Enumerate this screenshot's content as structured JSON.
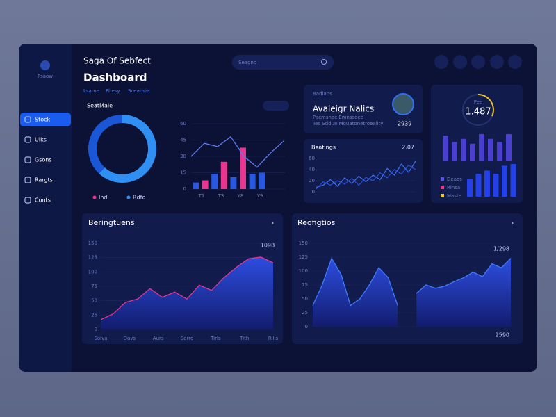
{
  "sidebar": {
    "logo": "Psaow",
    "items": [
      "Stock",
      "Ulks",
      "Gsons",
      "Rargts",
      "Conts"
    ],
    "active": 0
  },
  "header": {
    "title": "Saga Of Sebfect",
    "subtitle": "Dashboard",
    "tabs": [
      "Lsame",
      "Fhesy",
      "Sceahsie"
    ],
    "search": "Seagno"
  },
  "donut": {
    "title": "SeatMale",
    "values": [
      62,
      38
    ],
    "colors": [
      "#2f8ff2",
      "#1a57d6"
    ],
    "legend": [
      {
        "name": "Ihd",
        "color": "#e8358f"
      },
      {
        "name": "Rdfo",
        "color": "#3a8ef0"
      }
    ]
  },
  "combo": {
    "ylim": [
      0,
      60
    ],
    "yticks": [
      0,
      15,
      30,
      45,
      60
    ],
    "categories": [
      "T1",
      "T3",
      "Y8",
      "Y9"
    ],
    "bars": [
      6,
      8,
      14,
      25,
      11,
      38,
      14,
      15
    ],
    "bar_colors": [
      "#2858e0",
      "#e8358f",
      "#2858e0",
      "#e8358f",
      "#2858e0",
      "#e8358f",
      "#2858e0",
      "#2858e0"
    ],
    "line": [
      30,
      42,
      39,
      48,
      30,
      20,
      33,
      44
    ],
    "line_color": "#5c7cf0"
  },
  "profile": {
    "label": "Badlabs",
    "title": "Avaleigr Nalics",
    "subtitle": "Pacmsnoc Emnssoed",
    "description": "Tes Sddue Mouatonetroeality",
    "value": "2939"
  },
  "wave": {
    "title": "Beatings",
    "value": "2.07",
    "ylim": [
      0,
      60
    ],
    "yticks": [
      0,
      20,
      40,
      60
    ],
    "series": [
      {
        "color": "#3f73f5",
        "values": [
          8,
          12,
          22,
          10,
          25,
          15,
          28,
          18,
          30,
          22,
          42,
          30,
          50,
          35,
          55
        ]
      },
      {
        "color": "#2a4fd8",
        "values": [
          5,
          18,
          12,
          20,
          14,
          24,
          12,
          26,
          20,
          34,
          25,
          40,
          32,
          48,
          40
        ]
      }
    ]
  },
  "gauge": {
    "label": "Fee",
    "value": "1.487",
    "ylim": [
      0,
      100
    ],
    "top_bars": [
      80,
      60,
      70,
      55,
      85,
      70,
      60,
      85
    ],
    "top_color": "#4b3fd0",
    "bottom_bars": [
      55,
      70,
      80,
      70,
      95,
      100
    ],
    "bottom_color": "#2440e8",
    "legend": [
      {
        "name": "Deaos",
        "color": "#5a4ff0"
      },
      {
        "name": "Rinsa",
        "color": "#e8358f"
      },
      {
        "name": "Maste",
        "color": "#e8c230"
      }
    ]
  },
  "area_left": {
    "title": "Beringtuens",
    "annotation": "1098",
    "ylim": [
      0,
      150
    ],
    "yticks": [
      0,
      25,
      50,
      75,
      100,
      125,
      150
    ],
    "categories": [
      "Solva",
      "Davs",
      "Aurs",
      "Sarre",
      "Tirls",
      "Tith",
      "Rilis"
    ],
    "values": [
      17,
      27,
      47,
      53,
      71,
      56,
      65,
      53,
      77,
      68,
      90,
      108,
      123,
      126,
      116
    ],
    "color": "#e8358f"
  },
  "area_right": {
    "title": "Reofigtios",
    "annotation": "1/298",
    "footer": "2590",
    "ylim": [
      0,
      150
    ],
    "yticks": [
      0,
      25,
      50,
      75,
      100,
      125,
      150
    ],
    "values": [
      38,
      75,
      123,
      94,
      38,
      50,
      75,
      106,
      88,
      38,
      null,
      60,
      75,
      69,
      73,
      81,
      88,
      98,
      90,
      113,
      106,
      123
    ],
    "color": "#3f7bff"
  }
}
